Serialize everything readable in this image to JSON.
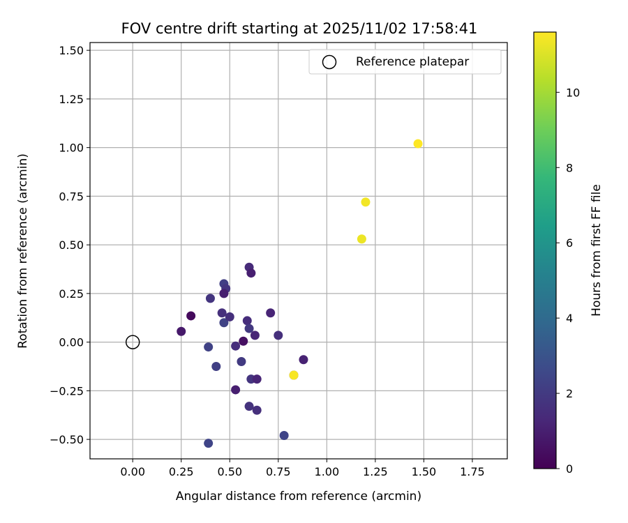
{
  "chart_data": {
    "type": "scatter",
    "title": "FOV centre drift starting at 2025/11/02 17:58:41",
    "xlabel": "Angular distance from reference (arcmin)",
    "ylabel": "Rotation from reference (arcmin)",
    "xlim": [
      -0.22,
      1.93
    ],
    "ylim": [
      -0.6,
      1.54
    ],
    "xticks": [
      "0.00",
      "0.25",
      "0.50",
      "0.75",
      "1.00",
      "1.25",
      "1.50",
      "1.75"
    ],
    "xtick_values": [
      0,
      0.25,
      0.5,
      0.75,
      1.0,
      1.25,
      1.5,
      1.75
    ],
    "yticks": [
      "−0.50",
      "−0.25",
      "0.00",
      "0.25",
      "0.50",
      "0.75",
      "1.00",
      "1.25",
      "1.50"
    ],
    "ytick_values": [
      -0.5,
      -0.25,
      0,
      0.25,
      0.5,
      0.75,
      1.0,
      1.25,
      1.5
    ],
    "grid": true,
    "legend": {
      "position": "top-right",
      "label": "Reference platepar"
    },
    "reference_point": {
      "x": 0.0,
      "y": 0.0
    },
    "colorbar": {
      "label": "Hours from first FF file",
      "range": [
        0,
        11.6
      ],
      "ticks": [
        "0",
        "2",
        "4",
        "6",
        "8",
        "10"
      ],
      "tick_values": [
        0,
        2,
        4,
        6,
        8,
        10
      ],
      "colormap": [
        "#440154",
        "#482878",
        "#3e4989",
        "#31688e",
        "#26828e",
        "#1f9e89",
        "#35b779",
        "#6ece58",
        "#b5de2b",
        "#fde725"
      ]
    },
    "points": [
      {
        "x": 0.25,
        "y": 0.055,
        "hours": 0.8
      },
      {
        "x": 0.3,
        "y": 0.135,
        "hours": 0.3
      },
      {
        "x": 0.4,
        "y": 0.225,
        "hours": 1.8
      },
      {
        "x": 0.39,
        "y": -0.025,
        "hours": 2.3
      },
      {
        "x": 0.43,
        "y": -0.125,
        "hours": 2.2
      },
      {
        "x": 0.39,
        "y": -0.52,
        "hours": 2.4
      },
      {
        "x": 0.46,
        "y": 0.15,
        "hours": 1.6
      },
      {
        "x": 0.47,
        "y": 0.3,
        "hours": 2.2
      },
      {
        "x": 0.48,
        "y": 0.275,
        "hours": 1.8
      },
      {
        "x": 0.47,
        "y": 0.25,
        "hours": 1.0
      },
      {
        "x": 0.47,
        "y": 0.1,
        "hours": 2.3
      },
      {
        "x": 0.5,
        "y": 0.13,
        "hours": 1.6
      },
      {
        "x": 0.53,
        "y": -0.02,
        "hours": 1.5
      },
      {
        "x": 0.53,
        "y": -0.245,
        "hours": 1.0
      },
      {
        "x": 0.56,
        "y": -0.1,
        "hours": 2.0
      },
      {
        "x": 0.57,
        "y": 0.005,
        "hours": 0.5
      },
      {
        "x": 0.59,
        "y": 0.11,
        "hours": 1.5
      },
      {
        "x": 0.6,
        "y": 0.07,
        "hours": 1.9
      },
      {
        "x": 0.6,
        "y": 0.385,
        "hours": 1.4
      },
      {
        "x": 0.61,
        "y": 0.355,
        "hours": 1.0
      },
      {
        "x": 0.6,
        "y": -0.33,
        "hours": 1.7
      },
      {
        "x": 0.61,
        "y": -0.19,
        "hours": 1.8
      },
      {
        "x": 0.63,
        "y": 0.035,
        "hours": 1.2
      },
      {
        "x": 0.64,
        "y": -0.19,
        "hours": 1.2
      },
      {
        "x": 0.64,
        "y": -0.35,
        "hours": 1.6
      },
      {
        "x": 0.71,
        "y": 0.15,
        "hours": 1.2
      },
      {
        "x": 0.75,
        "y": 0.035,
        "hours": 1.6
      },
      {
        "x": 0.78,
        "y": -0.48,
        "hours": 2.4
      },
      {
        "x": 0.83,
        "y": -0.17,
        "hours": 1.3
      },
      {
        "x": 0.88,
        "y": -0.09,
        "hours": 1.1
      },
      {
        "x": 0.83,
        "y": -0.17,
        "hours": 11.5
      },
      {
        "x": 1.18,
        "y": 0.53,
        "hours": 11.3
      },
      {
        "x": 1.2,
        "y": 0.72,
        "hours": 11.4
      },
      {
        "x": 1.47,
        "y": 1.02,
        "hours": 11.6
      }
    ]
  }
}
